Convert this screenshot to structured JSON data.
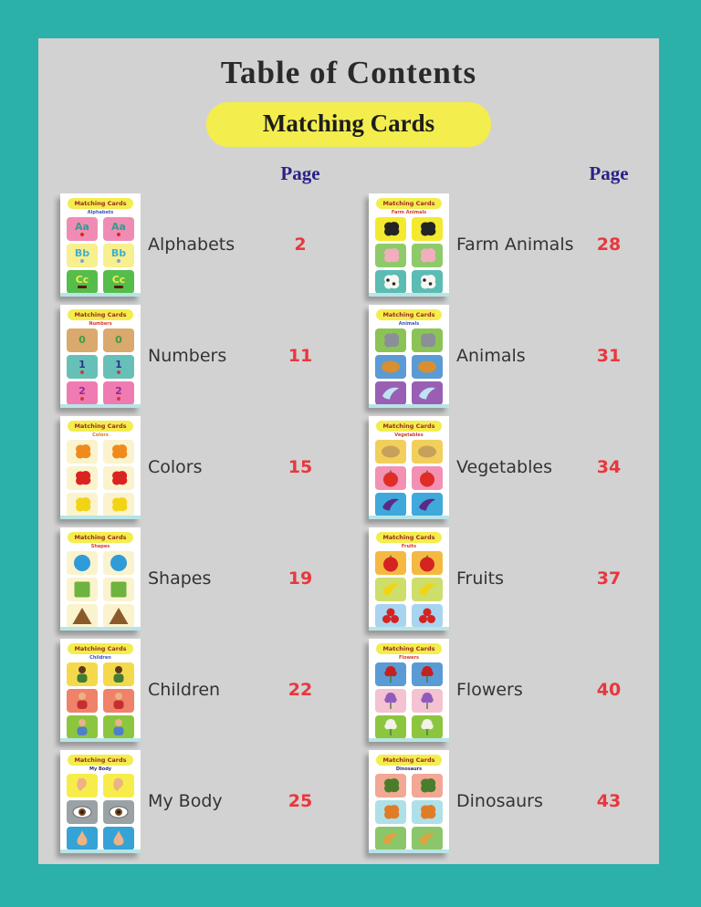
{
  "page": {
    "title": "Table of  Contents",
    "subtitle": "Matching Cards"
  },
  "thumb_title": "Matching Cards",
  "colors": {
    "frame": "#2bb1a9",
    "panel": "#d2d2d2",
    "subtitle_pill": "#f3ed4e",
    "page_header": "#2a2185",
    "page_number": "#e8373d",
    "label_text": "#333333"
  },
  "columns": [
    {
      "page_header": "Page",
      "items": [
        {
          "label": "Alphabets",
          "page": "2",
          "thumb": {
            "subtitle": "Alphabets",
            "subtitle_color": "#3b54c4",
            "rows": [
              {
                "bg": "#f08cb4",
                "glyph": "text",
                "text": "Aa",
                "fg": "#2ba08e",
                "accent": {
                  "shape": "dot",
                  "color": "#e02420"
                }
              },
              {
                "bg": "#f8ef8e",
                "glyph": "text",
                "text": "Bb",
                "fg": "#3fb0cf",
                "accent": {
                  "shape": "dot",
                  "color": "#7aa7d6"
                }
              },
              {
                "bg": "#55bd4a",
                "glyph": "text",
                "text": "Cc",
                "fg": "#f0ea50",
                "accent": {
                  "shape": "bar",
                  "color": "#571812"
                }
              }
            ]
          }
        },
        {
          "label": "Numbers",
          "page": "11",
          "thumb": {
            "subtitle": "Numbers",
            "subtitle_color": "#d43a2f",
            "rows": [
              {
                "bg": "#d9a96e",
                "glyph": "text",
                "text": "0",
                "fg": "#3f9b43"
              },
              {
                "bg": "#66c0b8",
                "glyph": "text",
                "text": "1",
                "fg": "#2a3490",
                "accent": {
                  "shape": "dot",
                  "color": "#d43a2f"
                }
              },
              {
                "bg": "#f07ab2",
                "glyph": "text",
                "text": "2",
                "fg": "#8e2f8e",
                "accent": {
                  "shape": "dot",
                  "color": "#d43a2f"
                }
              }
            ]
          }
        },
        {
          "label": "Colors",
          "page": "15",
          "thumb": {
            "subtitle": "Colors",
            "subtitle_color": "#d4752f",
            "rows": [
              {
                "bg": "#faf3cd",
                "glyph": "blob",
                "fg": "#f08a1d"
              },
              {
                "bg": "#faf3cd",
                "glyph": "blob",
                "fg": "#da2421"
              },
              {
                "bg": "#faf3cd",
                "glyph": "blob",
                "fg": "#f2d414"
              }
            ]
          }
        },
        {
          "label": "Shapes",
          "page": "19",
          "thumb": {
            "subtitle": "Shapes",
            "subtitle_color": "#d43a2f",
            "rows": [
              {
                "bg": "#faf3cd",
                "glyph": "circle",
                "fg": "#2f9bd8"
              },
              {
                "bg": "#faf3cd",
                "glyph": "square",
                "fg": "#6cb33f"
              },
              {
                "bg": "#faf3cd",
                "glyph": "triangle",
                "fg": "#8a5a2b"
              }
            ]
          }
        },
        {
          "label": "Children",
          "page": "22",
          "thumb": {
            "subtitle": "Children",
            "subtitle_color": "#3b54c4",
            "rows": [
              {
                "bg": "#f5d94d",
                "glyph": "person",
                "fg": "#3f7d38",
                "skin": "#5d3a1e"
              },
              {
                "bg": "#ef8268",
                "glyph": "person",
                "fg": "#c62f2f",
                "skin": "#eab386"
              },
              {
                "bg": "#8cc63f",
                "glyph": "person",
                "fg": "#4f7fc9",
                "skin": "#eab386"
              }
            ]
          }
        },
        {
          "label": "My Body",
          "page": "25",
          "thumb": {
            "subtitle": "My Body",
            "subtitle_color": "#2a2a6e",
            "rows": [
              {
                "bg": "#f7ed4a",
                "glyph": "ear",
                "fg": "#eeb287"
              },
              {
                "bg": "#9aa2a6",
                "glyph": "eye",
                "fg": "#7a4a21"
              },
              {
                "bg": "#35a3d6",
                "glyph": "nose",
                "fg": "#eeb287"
              }
            ]
          }
        }
      ]
    },
    {
      "page_header": "Page",
      "items": [
        {
          "label": "Farm Animals",
          "page": "28",
          "thumb": {
            "subtitle": "Farm Animals",
            "subtitle_color": "#d43a2f",
            "rows": [
              {
                "bg": "#f3ea2f",
                "glyph": "blob",
                "fg": "#242424"
              },
              {
                "bg": "#8fca6a",
                "glyph": "blob",
                "fg": "#f2aebe"
              },
              {
                "bg": "#5bbcb4",
                "glyph": "blob",
                "fg": "#f7f7f2",
                "spots": "#2b2b2b"
              }
            ]
          }
        },
        {
          "label": "Animals",
          "page": "31",
          "thumb": {
            "subtitle": "Animals",
            "subtitle_color": "#3b54c4",
            "rows": [
              {
                "bg": "#8cc356",
                "glyph": "blob",
                "fg": "#8a8f98"
              },
              {
                "bg": "#5b9bd5",
                "glyph": "oval",
                "fg": "#d98e2f"
              },
              {
                "bg": "#9a5fb5",
                "glyph": "crescent",
                "fg": "#bfe3f0"
              }
            ]
          }
        },
        {
          "label": "Vegetables",
          "page": "34",
          "thumb": {
            "subtitle": "Vegetables",
            "subtitle_color": "#d43a2f",
            "rows": [
              {
                "bg": "#f2cf5b",
                "glyph": "oval",
                "fg": "#c7a15a"
              },
              {
                "bg": "#f291b4",
                "glyph": "apple",
                "fg": "#e02d26"
              },
              {
                "bg": "#3fa9dc",
                "glyph": "crescent",
                "fg": "#5b2a86"
              }
            ]
          }
        },
        {
          "label": "Fruits",
          "page": "37",
          "thumb": {
            "subtitle": "Fruits",
            "subtitle_color": "#d43a2f",
            "rows": [
              {
                "bg": "#f5b942",
                "glyph": "apple",
                "fg": "#d42320"
              },
              {
                "bg": "#cede6a",
                "glyph": "crescent",
                "fg": "#f2d414"
              },
              {
                "bg": "#a8d4ef",
                "glyph": "berries",
                "fg": "#d42320"
              }
            ]
          }
        },
        {
          "label": "Flowers",
          "page": "40",
          "thumb": {
            "subtitle": "Flowers",
            "subtitle_color": "#d43a2f",
            "rows": [
              {
                "bg": "#5b9bd5",
                "glyph": "flower",
                "fg": "#c4201f"
              },
              {
                "bg": "#f4c2d0",
                "glyph": "flower",
                "fg": "#8f5bbf"
              },
              {
                "bg": "#8cc63f",
                "glyph": "flower",
                "fg": "#f2f2e8"
              }
            ]
          }
        },
        {
          "label": "Dinosaurs",
          "page": "43",
          "thumb": {
            "subtitle": "Dinosaurs",
            "subtitle_color": "#2a2a6e",
            "rows": [
              {
                "bg": "#f2a894",
                "glyph": "blob",
                "fg": "#4a7d2b"
              },
              {
                "bg": "#aee0e8",
                "glyph": "blob",
                "fg": "#e07b28"
              },
              {
                "bg": "#8cc66a",
                "glyph": "crescent",
                "fg": "#e0a13f"
              }
            ]
          }
        }
      ]
    }
  ]
}
